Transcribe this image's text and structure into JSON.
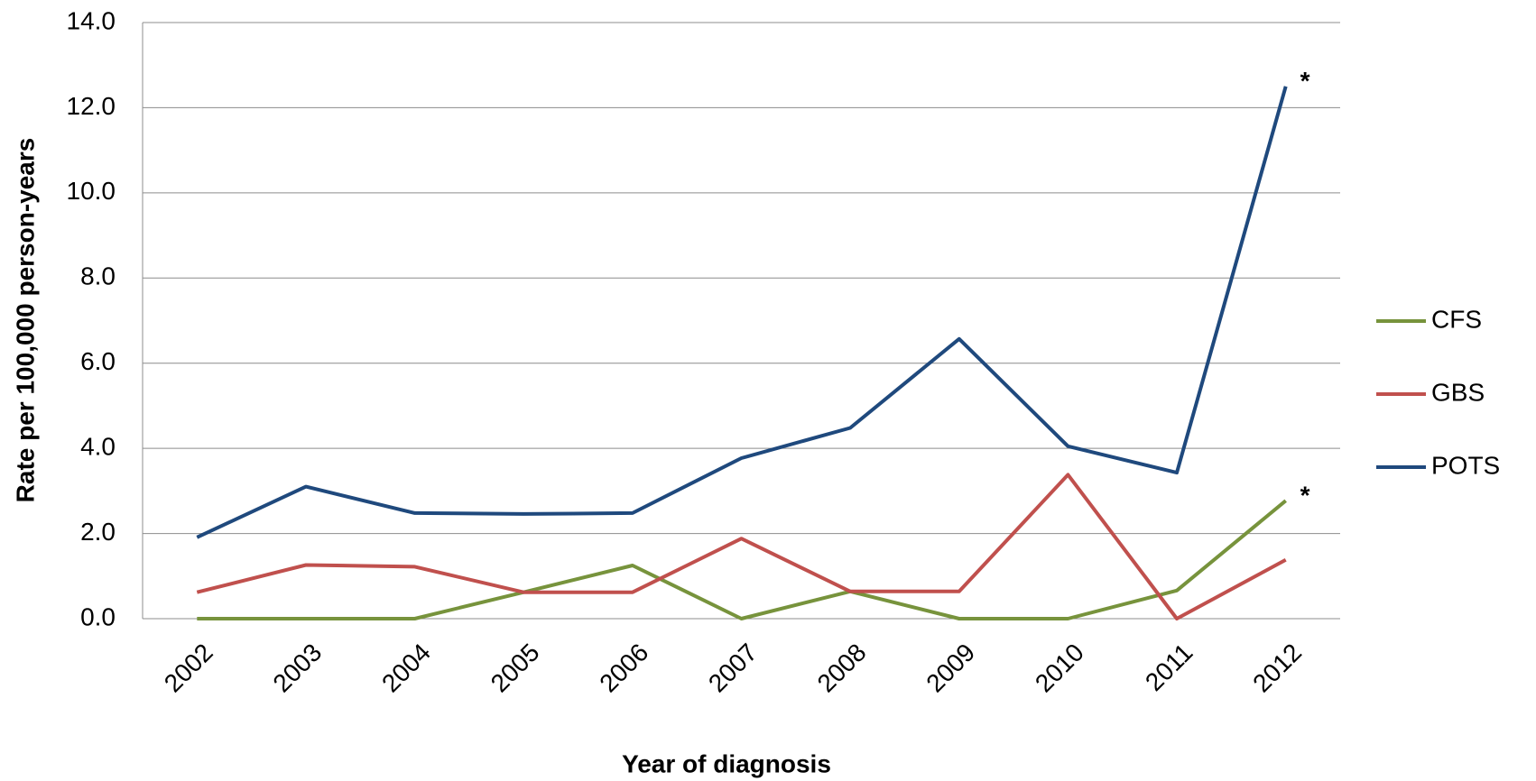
{
  "chart_data": {
    "type": "line",
    "xlabel": "Year of diagnosis",
    "ylabel": "Rate per 100,000 person-years",
    "categories": [
      "2002",
      "2003",
      "2004",
      "2005",
      "2006",
      "2007",
      "2008",
      "2009",
      "2010",
      "2011",
      "2012"
    ],
    "series": [
      {
        "name": "CFS",
        "color": "#77933c",
        "values": [
          0,
          0,
          0,
          0.62,
          1.25,
          0,
          0.64,
          0,
          0,
          0.66,
          2.77
        ],
        "annotation": "*"
      },
      {
        "name": "GBS",
        "color": "#c0504d",
        "values": [
          0.62,
          1.26,
          1.22,
          0.62,
          0.62,
          1.88,
          0.64,
          0.64,
          3.38,
          0,
          1.38
        ]
      },
      {
        "name": "POTS",
        "color": "#1f497d",
        "values": [
          1.91,
          3.1,
          2.48,
          2.46,
          2.48,
          3.77,
          4.48,
          6.57,
          4.05,
          3.43,
          12.5
        ],
        "annotation": "*"
      }
    ],
    "ylim": [
      0,
      14
    ],
    "yticks": [
      {
        "value": 0,
        "label": "0.0"
      },
      {
        "value": 2,
        "label": "2.0"
      },
      {
        "value": 4,
        "label": "4.0"
      },
      {
        "value": 6,
        "label": "6.0"
      },
      {
        "value": 8,
        "label": "8.0"
      },
      {
        "value": 10,
        "label": "10.0"
      },
      {
        "value": 12,
        "label": "12.0"
      },
      {
        "value": 14,
        "label": "14.0"
      }
    ],
    "grid": true,
    "legend": "right"
  }
}
